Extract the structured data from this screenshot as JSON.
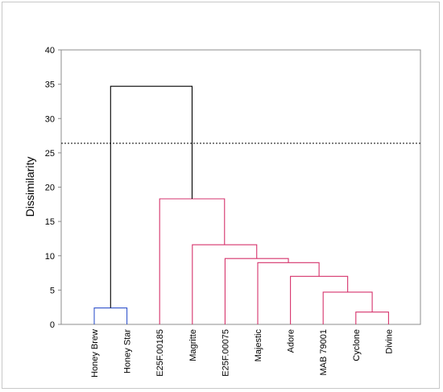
{
  "chart_data": {
    "type": "dendrogram",
    "ylabel": "Dissimilarity",
    "ylim": [
      0,
      40
    ],
    "yticks": [
      0,
      5,
      10,
      15,
      20,
      25,
      30,
      35,
      40
    ],
    "grid": false,
    "cut_line": 26.4,
    "leaves": [
      "Honey Brew",
      "Honey Star",
      "E25F.00185",
      "Magritte",
      "E25F.00075",
      "Majestic",
      "Adore",
      "MAB 79001",
      "Cyclone",
      "Divine"
    ],
    "merges": [
      {
        "left": "Honey Brew",
        "right": "Honey Star",
        "height": 2.4,
        "color": "#3355cc"
      },
      {
        "left": "Cyclone",
        "right": "Divine",
        "height": 1.8,
        "color": "#d6336c"
      },
      {
        "left": "MAB 79001",
        "right": "Cyclone+Divine",
        "height": 4.7,
        "color": "#d6336c"
      },
      {
        "left": "Adore",
        "right": "MAB 79001 cluster",
        "height": 7.0,
        "color": "#d6336c"
      },
      {
        "left": "Majestic",
        "right": "Adore cluster",
        "height": 9.0,
        "color": "#d6336c"
      },
      {
        "left": "E25F.00075",
        "right": "Majestic cluster",
        "height": 9.6,
        "color": "#d6336c"
      },
      {
        "left": "Magritte",
        "right": "E25F.00075 cluster",
        "height": 11.6,
        "color": "#d6336c"
      },
      {
        "left": "E25F.00185",
        "right": "Magritte cluster",
        "height": 18.3,
        "color": "#d6336c"
      },
      {
        "left": "Honey cluster",
        "right": "E25F cluster",
        "height": 34.7,
        "color": "#000000"
      }
    ]
  }
}
